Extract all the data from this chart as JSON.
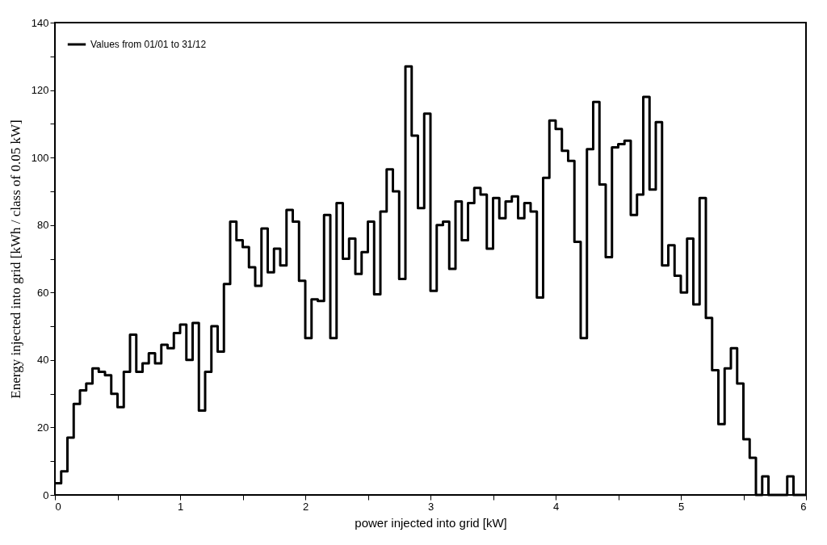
{
  "chart_data": {
    "type": "histogram",
    "xlabel": "power injected into grid [kW]",
    "ylabel": "Energy injected into grid [kWh / class of 0.05 kW]",
    "bins": [
      0,
      0.05,
      0.1,
      0.15,
      0.2,
      0.25,
      0.3,
      0.35,
      0.4,
      0.45,
      0.5,
      0.55,
      0.6,
      0.65,
      0.7,
      0.75,
      0.8,
      0.85,
      0.9,
      0.95,
      1,
      1.05,
      1.1,
      1.15,
      1.2,
      1.25,
      1.3,
      1.35,
      1.4,
      1.45,
      1.5,
      1.55,
      1.6,
      1.65,
      1.7,
      1.75,
      1.8,
      1.85,
      1.9,
      1.95,
      2,
      2.05,
      2.1,
      2.15,
      2.2,
      2.25,
      2.3,
      2.35,
      2.4,
      2.45,
      2.5,
      2.55,
      2.6,
      2.65,
      2.7,
      2.75,
      2.8,
      2.85,
      2.9,
      2.95,
      3,
      3.05,
      3.1,
      3.15,
      3.2,
      3.25,
      3.3,
      3.35,
      3.4,
      3.45,
      3.5,
      3.55,
      3.6,
      3.65,
      3.7,
      3.75,
      3.8,
      3.85,
      3.9,
      3.95,
      4,
      4.05,
      4.1,
      4.15,
      4.2,
      4.25,
      4.3,
      4.35,
      4.4,
      4.45,
      4.5,
      4.55,
      4.6,
      4.65,
      4.7,
      4.75,
      4.8,
      4.85,
      4.9,
      4.95,
      5,
      5.05,
      5.1,
      5.15,
      5.2,
      5.25,
      5.3,
      5.35,
      5.4,
      5.45,
      5.5,
      5.55,
      5.6,
      5.65,
      5.7,
      5.75,
      5.8,
      5.85,
      5.9,
      5.95,
      6
    ],
    "series": [
      {
        "name": "Values from 01/01 to 31/12",
        "color": "#000000",
        "values": [
          3.5,
          7,
          17,
          27,
          31,
          33,
          37.5,
          36.5,
          35.5,
          30,
          26,
          36.5,
          47.5,
          36.5,
          39,
          42,
          39,
          44.5,
          43.5,
          48,
          50.5,
          40,
          51,
          25,
          36.5,
          50,
          42.5,
          62.5,
          81,
          75.5,
          73.5,
          67.5,
          62,
          79,
          66,
          73,
          68,
          84.5,
          81,
          63.5,
          46.5,
          58,
          57.5,
          83,
          46.5,
          86.5,
          70,
          76,
          65.5,
          72,
          81,
          59.5,
          84,
          96.5,
          90,
          64,
          127,
          106.5,
          85,
          113,
          60.5,
          80,
          81,
          67,
          87,
          75.5,
          86.5,
          91,
          89,
          73,
          88,
          82,
          87,
          88.5,
          82,
          86.5,
          84,
          58.5,
          94,
          111,
          108.5,
          102,
          99,
          75,
          46.5,
          102.5,
          116.5,
          92,
          70.5,
          103,
          104,
          105,
          83,
          89,
          118,
          90.5,
          110.5,
          68,
          74,
          65,
          60,
          76,
          56.5,
          88,
          52.5,
          37,
          21,
          37.5,
          43.5,
          33,
          16.5,
          11,
          0,
          5.5,
          0,
          0,
          0,
          5.5,
          0,
          0
        ]
      }
    ],
    "xlim": [
      0,
      6
    ],
    "xticks": [
      0,
      {
        "value": 0.5,
        "label": null
      },
      1,
      {
        "value": 1.5,
        "label": null
      },
      2,
      {
        "value": 2.5,
        "label": null
      },
      3,
      {
        "value": 3.5,
        "label": null
      },
      4,
      {
        "value": 4.5,
        "label": null
      },
      5,
      {
        "value": 5.5,
        "label": null
      },
      6
    ],
    "ylim": [
      0,
      140
    ],
    "yticks": [
      0,
      {
        "value": 10,
        "label": null
      },
      20,
      {
        "value": 30,
        "label": null
      },
      40,
      {
        "value": 50,
        "label": null
      },
      60,
      {
        "value": 70,
        "label": null
      },
      80,
      {
        "value": 90,
        "label": null
      },
      100,
      {
        "value": 110,
        "label": null
      },
      120,
      {
        "value": 130,
        "label": null
      },
      140
    ],
    "legend": "top left"
  }
}
